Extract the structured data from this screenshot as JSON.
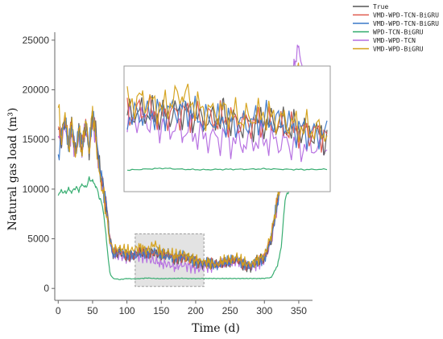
{
  "chart_data": {
    "type": "line",
    "xlabel": "Time (d)",
    "ylabel": "Natural gas load (m³)",
    "xlim": [
      -5,
      370
    ],
    "ylim": [
      -1200,
      25800
    ],
    "xticks": [
      "0",
      "50",
      "100",
      "150",
      "200",
      "250",
      "300",
      "350"
    ],
    "yticks": [
      "0",
      "5000",
      "10000",
      "15000",
      "20000",
      "25000"
    ],
    "legend_position": "top-right",
    "highlight_region": {
      "x": [
        112,
        212
      ],
      "y": [
        200,
        5500
      ]
    },
    "inset": {
      "source_x": [
        112,
        212
      ],
      "source_y": [
        200,
        5500
      ],
      "position": "upper-middle"
    },
    "series": [
      {
        "name": "True",
        "color": "#555555",
        "x": [
          0,
          5,
          10,
          15,
          20,
          25,
          30,
          35,
          40,
          45,
          50,
          55,
          60,
          65,
          70,
          75,
          80,
          90,
          100,
          110,
          120,
          130,
          140,
          150,
          160,
          170,
          180,
          190,
          200,
          210,
          220,
          230,
          240,
          250,
          260,
          270,
          280,
          290,
          300,
          310,
          320,
          330,
          335,
          340,
          345,
          350,
          355,
          360
        ],
        "y": [
          16000,
          15200,
          17200,
          14500,
          16300,
          13500,
          15800,
          14200,
          16800,
          14000,
          17500,
          15500,
          12200,
          10500,
          8500,
          5200,
          3500,
          3600,
          3300,
          3500,
          3600,
          3400,
          3700,
          3200,
          3400,
          3000,
          3200,
          3000,
          2800,
          2500,
          2400,
          2300,
          2700,
          2600,
          3000,
          2400,
          2200,
          2800,
          3000,
          5000,
          9000,
          14000,
          17000,
          18500,
          19500,
          21000,
          20000,
          18000
        ]
      },
      {
        "name": "VMD-WPD-TCN-BiGRU",
        "color": "#e05a4e",
        "x": [
          0,
          5,
          10,
          15,
          20,
          25,
          30,
          35,
          40,
          45,
          50,
          55,
          60,
          65,
          70,
          75,
          80,
          90,
          100,
          110,
          120,
          130,
          140,
          150,
          160,
          170,
          180,
          190,
          200,
          210,
          220,
          230,
          240,
          250,
          260,
          270,
          280,
          290,
          300,
          310,
          320,
          330,
          335,
          340,
          345,
          350,
          355,
          360
        ],
        "y": [
          15800,
          15500,
          16900,
          14800,
          16100,
          13800,
          15600,
          14500,
          16500,
          14200,
          17200,
          15300,
          12000,
          10300,
          8300,
          5100,
          3600,
          3700,
          3400,
          3400,
          3700,
          3500,
          3600,
          3300,
          3300,
          3100,
          3100,
          2900,
          2700,
          2600,
          2500,
          2400,
          2600,
          2700,
          2900,
          2500,
          2300,
          2700,
          3100,
          5200,
          9200,
          14200,
          17500,
          19000,
          20500,
          21500,
          20800,
          18200
        ]
      },
      {
        "name": "VMD-WPD-TCN-BiGRU",
        "color": "#3a78c8",
        "x": [
          0,
          5,
          10,
          15,
          20,
          25,
          30,
          35,
          40,
          45,
          50,
          55,
          60,
          65,
          70,
          75,
          80,
          90,
          100,
          110,
          120,
          130,
          140,
          150,
          160,
          170,
          180,
          190,
          200,
          210,
          220,
          230,
          240,
          250,
          260,
          270,
          280,
          290,
          300,
          310,
          320,
          330,
          335,
          340,
          345,
          350,
          355,
          360
        ],
        "y": [
          13000,
          15800,
          17000,
          14300,
          16500,
          13600,
          15900,
          14300,
          16700,
          14100,
          17400,
          15400,
          12100,
          10400,
          8400,
          5000,
          3400,
          3800,
          3500,
          3400,
          3500,
          3600,
          3800,
          3300,
          3200,
          3100,
          3300,
          3100,
          2700,
          2600,
          2500,
          2300,
          2600,
          2700,
          3000,
          2500,
          2300,
          2700,
          3000,
          5100,
          9100,
          14500,
          18000,
          19500,
          21000,
          22000,
          20500,
          18500
        ]
      },
      {
        "name": "WPD-TCN-BiGRU",
        "color": "#2eaa6a",
        "x": [
          0,
          5,
          10,
          15,
          20,
          25,
          30,
          35,
          40,
          45,
          50,
          55,
          60,
          65,
          70,
          75,
          80,
          90,
          100,
          110,
          120,
          130,
          140,
          150,
          160,
          170,
          180,
          190,
          200,
          210,
          220,
          230,
          240,
          250,
          260,
          270,
          280,
          290,
          300,
          310,
          320,
          325,
          330,
          340,
          350,
          360
        ],
        "y": [
          9500,
          9800,
          9600,
          10000,
          9700,
          10200,
          9900,
          10500,
          10100,
          11000,
          10800,
          10300,
          9200,
          8200,
          5000,
          1500,
          1000,
          900,
          1000,
          950,
          1000,
          1050,
          1000,
          980,
          1000,
          1000,
          1020,
          1000,
          990,
          1000,
          1010,
          1000,
          1000,
          1000,
          1000,
          1000,
          1000,
          1000,
          1020,
          1100,
          2500,
          4500,
          9000,
          10500,
          11500,
          13000
        ]
      },
      {
        "name": "VMD-WPD-TCN",
        "color": "#b46be0",
        "x": [
          0,
          5,
          10,
          15,
          20,
          25,
          30,
          35,
          40,
          45,
          50,
          55,
          60,
          65,
          70,
          75,
          80,
          90,
          100,
          110,
          120,
          130,
          140,
          150,
          160,
          170,
          180,
          190,
          200,
          210,
          220,
          230,
          240,
          250,
          260,
          270,
          280,
          290,
          300,
          310,
          320,
          330,
          335,
          340,
          345,
          350,
          355,
          360
        ],
        "y": [
          15500,
          15000,
          16600,
          14200,
          16000,
          13200,
          15400,
          14000,
          16400,
          13800,
          17000,
          15000,
          11800,
          10100,
          8100,
          4900,
          3300,
          3300,
          3100,
          3200,
          3300,
          3000,
          2800,
          2500,
          2400,
          2200,
          2400,
          2200,
          2000,
          2100,
          2200,
          2300,
          2500,
          2500,
          2800,
          2300,
          2100,
          2500,
          2800,
          4800,
          8800,
          14000,
          18500,
          21000,
          23000,
          24500,
          22000,
          19000
        ]
      },
      {
        "name": "VMD-WPD-BiGRU",
        "color": "#d4a017",
        "x": [
          0,
          5,
          10,
          15,
          20,
          25,
          30,
          35,
          40,
          45,
          50,
          55,
          60,
          65,
          70,
          75,
          80,
          90,
          100,
          110,
          120,
          130,
          140,
          150,
          160,
          170,
          180,
          190,
          200,
          210,
          220,
          230,
          240,
          250,
          260,
          270,
          280,
          290,
          300,
          310,
          320,
          330,
          335,
          340,
          345,
          350,
          355,
          360
        ],
        "y": [
          18500,
          14800,
          17800,
          14000,
          16800,
          13000,
          16200,
          13700,
          17200,
          13600,
          18000,
          14800,
          11500,
          9800,
          7500,
          4700,
          3900,
          4100,
          3800,
          3900,
          4200,
          3800,
          4500,
          3600,
          3700,
          3300,
          3500,
          3200,
          2900,
          2700,
          2600,
          2400,
          2800,
          2900,
          3200,
          2600,
          2400,
          2900,
          3300,
          5400,
          9400,
          14800,
          19000,
          20000,
          21500,
          22500,
          21000,
          18800
        ]
      }
    ]
  },
  "legend": [
    {
      "label": "True",
      "color": "#555555"
    },
    {
      "label": "VMD-WPD-TCN-BiGRU",
      "color": "#e05a4e"
    },
    {
      "label": "VMD-WPD-TCN-BiGRU",
      "color": "#3a78c8"
    },
    {
      "label": "WPD-TCN-BiGRU",
      "color": "#2eaa6a"
    },
    {
      "label": "VMD-WPD-TCN",
      "color": "#b46be0"
    },
    {
      "label": "VMD-WPD-BiGRU",
      "color": "#d4a017"
    }
  ]
}
